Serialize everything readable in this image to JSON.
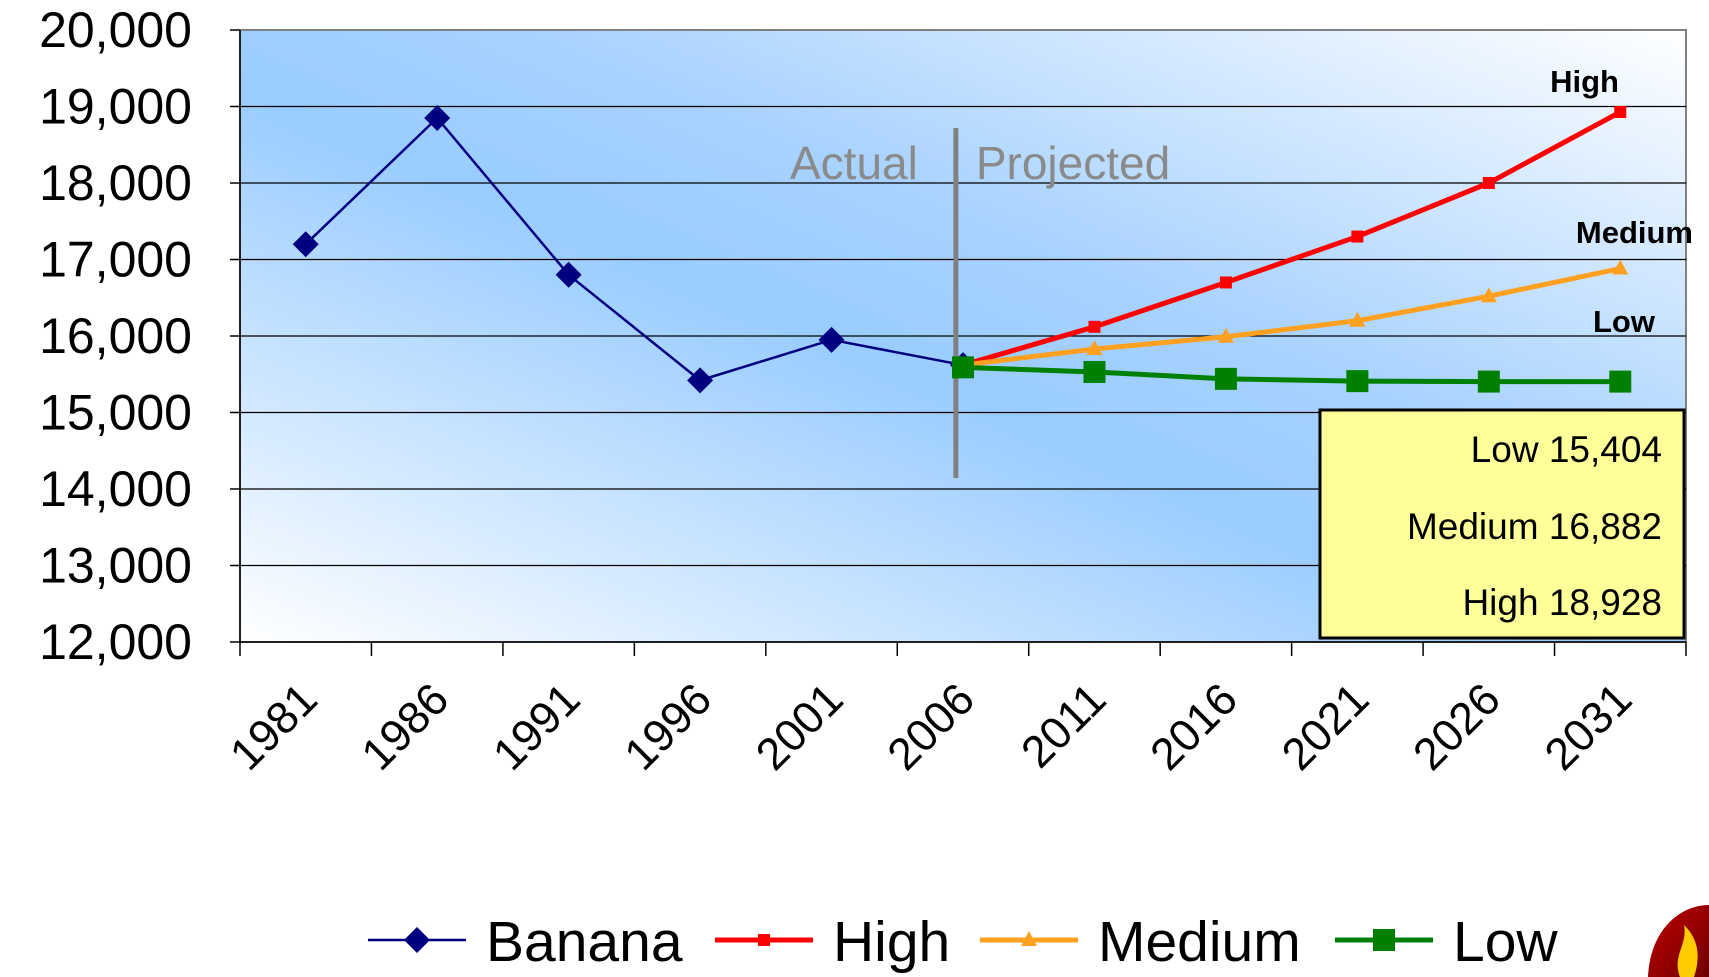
{
  "chart_data": {
    "type": "line",
    "x": [
      1981,
      1986,
      1991,
      1996,
      2001,
      2006,
      2011,
      2016,
      2021,
      2026,
      2031
    ],
    "xlim": [
      1981,
      2036
    ],
    "ylim": [
      12000,
      20000
    ],
    "y_ticks": [
      "12,000",
      "13,000",
      "14,000",
      "15,000",
      "16,000",
      "17,000",
      "18,000",
      "19,000",
      "20,000"
    ],
    "x_ticks": [
      "1981",
      "1986",
      "1991",
      "1996",
      "2001",
      "2006",
      "2011",
      "2016",
      "2021",
      "2026",
      "2031"
    ],
    "grid": "horizontal",
    "background": "gradient-blue",
    "series": [
      {
        "name": "Banana",
        "color": "#000080",
        "marker": "diamond",
        "points": [
          [
            1983.5,
            17200
          ],
          [
            1988.5,
            18850
          ],
          [
            1993.5,
            16800
          ],
          [
            1998.5,
            15420
          ],
          [
            2003.5,
            15950
          ],
          [
            2008.5,
            15620
          ]
        ]
      },
      {
        "name": "High",
        "color": "#ff0000",
        "marker": "small-square",
        "points": [
          [
            2008.5,
            15620
          ],
          [
            2013.5,
            16120
          ],
          [
            2018.5,
            16700
          ],
          [
            2023.5,
            17300
          ],
          [
            2028.5,
            18000
          ],
          [
            2033.5,
            18928
          ]
        ]
      },
      {
        "name": "Medium",
        "color": "#ffa020",
        "marker": "triangle",
        "points": [
          [
            2008.5,
            15620
          ],
          [
            2013.5,
            15830
          ],
          [
            2018.5,
            15990
          ],
          [
            2023.5,
            16200
          ],
          [
            2028.5,
            16520
          ],
          [
            2033.5,
            16882
          ]
        ]
      },
      {
        "name": "Low",
        "color": "#008000",
        "marker": "square",
        "points": [
          [
            2008.5,
            15590
          ],
          [
            2013.5,
            15530
          ],
          [
            2018.5,
            15440
          ],
          [
            2023.5,
            15410
          ],
          [
            2028.5,
            15404
          ],
          [
            2033.5,
            15404
          ]
        ]
      }
    ],
    "divider_year": 2008,
    "region_labels": {
      "left": "Actual",
      "right": "Projected"
    },
    "end_labels": {
      "high": "High",
      "medium": "Medium",
      "low": "Low"
    },
    "summary_box": [
      "Low 15,404",
      "Medium 16,882",
      "High 18,928"
    ],
    "legend": {
      "position": "bottom",
      "items": [
        "Banana",
        "High",
        "Medium",
        "Low"
      ]
    }
  }
}
